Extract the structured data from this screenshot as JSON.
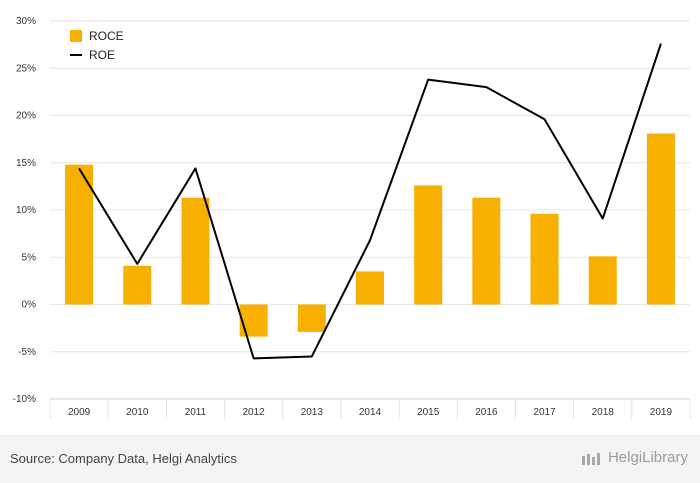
{
  "chart_data": {
    "type": "bar",
    "categories": [
      "2009",
      "2010",
      "2011",
      "2012",
      "2013",
      "2014",
      "2015",
      "2016",
      "2017",
      "2018",
      "2019"
    ],
    "series": [
      {
        "name": "ROCE",
        "type": "bar",
        "color": "#f7b000",
        "values": [
          14.8,
          4.1,
          11.3,
          -3.4,
          -2.9,
          3.5,
          12.6,
          11.3,
          9.6,
          5.1,
          18.1
        ]
      },
      {
        "name": "ROE",
        "type": "line",
        "color": "#000000",
        "values": [
          14.4,
          4.3,
          14.4,
          -5.7,
          -5.5,
          6.8,
          23.8,
          23.0,
          19.6,
          9.1,
          27.6
        ]
      }
    ],
    "ylim": [
      -10,
      30
    ],
    "yticks": [
      -10,
      -5,
      0,
      5,
      10,
      15,
      20,
      25,
      30
    ],
    "ytick_labels": [
      "-10%",
      "-5%",
      "0%",
      "5%",
      "10%",
      "15%",
      "20%",
      "25%",
      "30%"
    ],
    "grid": true,
    "legend_position": "top-left"
  },
  "footer": {
    "source": "Source: Company Data, Helgi Analytics",
    "brand": "HelgiLibrary"
  }
}
